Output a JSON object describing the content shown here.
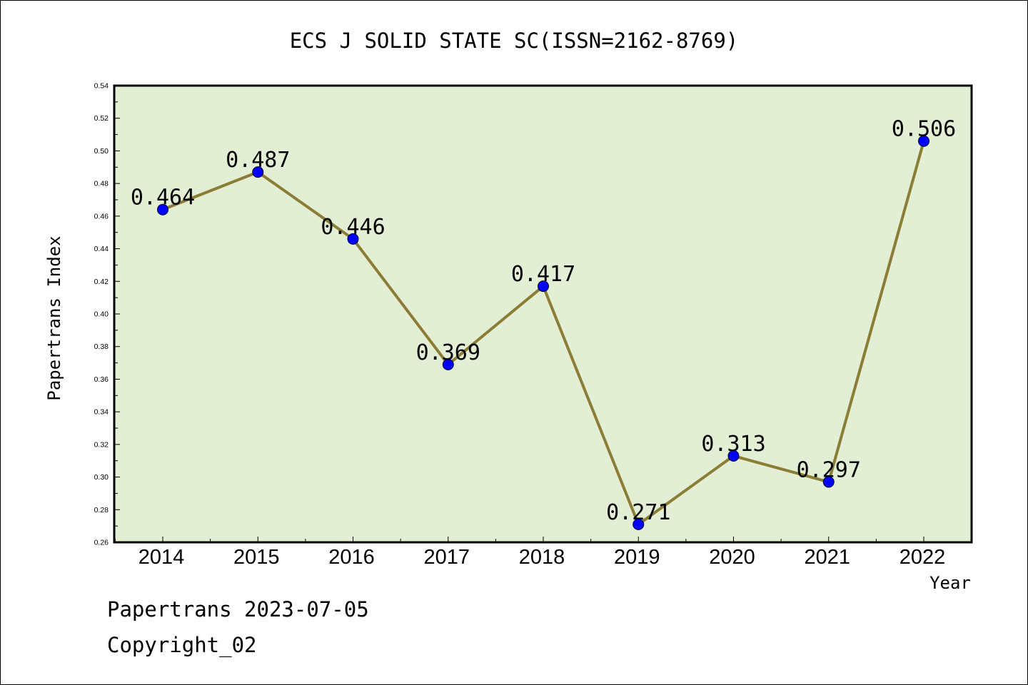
{
  "chart_data": {
    "type": "line",
    "title": "ECS J SOLID STATE SC(ISSN=2162-8769)",
    "xlabel": "Year",
    "ylabel": "Papertrans Index",
    "categories": [
      "2014",
      "2015",
      "2016",
      "2017",
      "2018",
      "2019",
      "2020",
      "2021",
      "2022"
    ],
    "series": [
      {
        "values": [
          0.464,
          0.487,
          0.446,
          0.369,
          0.417,
          0.271,
          0.313,
          0.297,
          0.506
        ]
      }
    ],
    "data_labels": [
      "0.464",
      "0.487",
      "0.446",
      "0.369",
      "0.417",
      "0.271",
      "0.313",
      "0.297",
      "0.506"
    ],
    "ylim": [
      0.26,
      0.54
    ],
    "yticks": [
      "0.26",
      "0.28",
      "0.30",
      "0.32",
      "0.34",
      "0.36",
      "0.38",
      "0.40",
      "0.42",
      "0.44",
      "0.46",
      "0.48",
      "0.50",
      "0.52",
      "0.54"
    ],
    "grid": false,
    "legend": "none",
    "colors": {
      "plot_background": "#e2efd4",
      "line": "#8b7d35",
      "marker": "#0000ff",
      "axis": "#000000"
    }
  },
  "footer": {
    "line1": "Papertrans 2023-07-05",
    "line2": "Copyright_02"
  }
}
